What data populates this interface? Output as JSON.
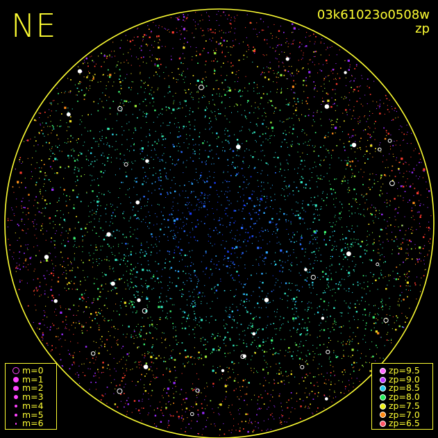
{
  "sky_view": {
    "direction_label": "NE",
    "frame_id": "03k61023o0508w",
    "display_mode": "zp",
    "colors": {
      "background": "#000000",
      "annotation": "#ffff33",
      "horizon_circle": "#ffff33"
    },
    "magnitude_legend": {
      "items": [
        {
          "label": "m=0",
          "symbol": "ring",
          "color": "#ff44ff"
        },
        {
          "label": "m=1",
          "symbol": "dot",
          "color": "#ff44ff"
        },
        {
          "label": "m=2",
          "symbol": "dot",
          "color": "#ff44ff"
        },
        {
          "label": "m=3",
          "symbol": "dot",
          "color": "#ff44ff"
        },
        {
          "label": "m=4",
          "symbol": "dot",
          "color": "#ff44ff"
        },
        {
          "label": "m=5",
          "symbol": "dot",
          "color": "#ff44ff"
        },
        {
          "label": "m=6",
          "symbol": "dot",
          "color": "#ff44ff"
        }
      ]
    },
    "zp_legend": {
      "items": [
        {
          "label": "zp=9.5",
          "color": "#ff66ff"
        },
        {
          "label": "zp=9.0",
          "color": "#bb33ff"
        },
        {
          "label": "zp=8.5",
          "color": "#22ccee"
        },
        {
          "label": "zp=8.0",
          "color": "#22ee55"
        },
        {
          "label": "zp=7.5",
          "color": "#eeee11"
        },
        {
          "label": "zp=7.0",
          "color": "#ff8811"
        },
        {
          "label": "zp=6.5",
          "color": "#ff5566"
        }
      ]
    },
    "star_palette": [
      "#1a3cff",
      "#2a6bff",
      "#2fa8ff",
      "#2ed3e8",
      "#33e6c0",
      "#3cf070",
      "#9cf03a",
      "#f0e020",
      "#ff8c1a",
      "#ff3b2e",
      "#9a2cff",
      "#ffffff"
    ]
  }
}
